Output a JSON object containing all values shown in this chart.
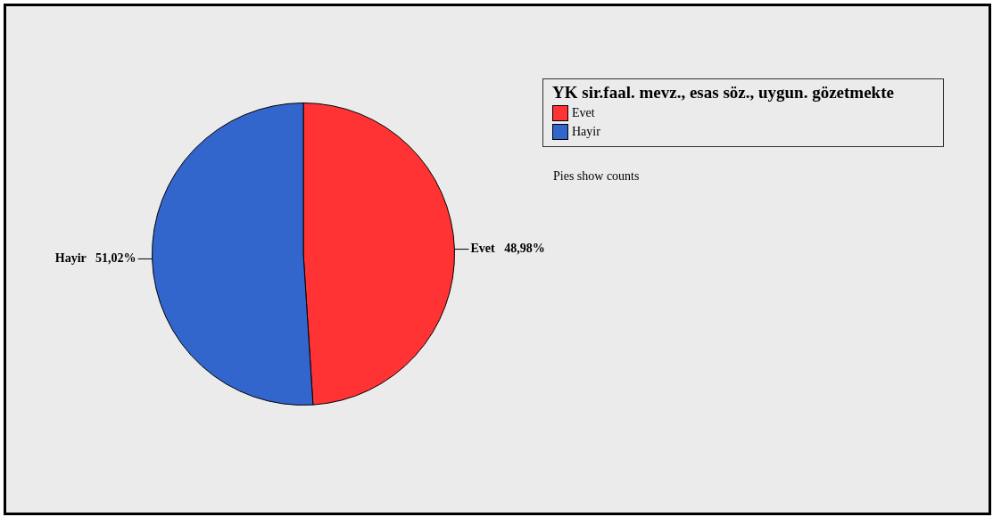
{
  "chart_data": {
    "type": "pie",
    "legend_title": "YK sir.faal. mevz., esas söz., uygun. gözetmekte",
    "categories": [
      "Evet",
      "Hayir"
    ],
    "values": [
      48.98,
      51.02
    ],
    "colors": [
      "#ff3333",
      "#3366cc"
    ],
    "value_labels": [
      "48,98%",
      "51,02%"
    ],
    "legend": "top right",
    "annotations": [
      "Pies show counts"
    ]
  }
}
